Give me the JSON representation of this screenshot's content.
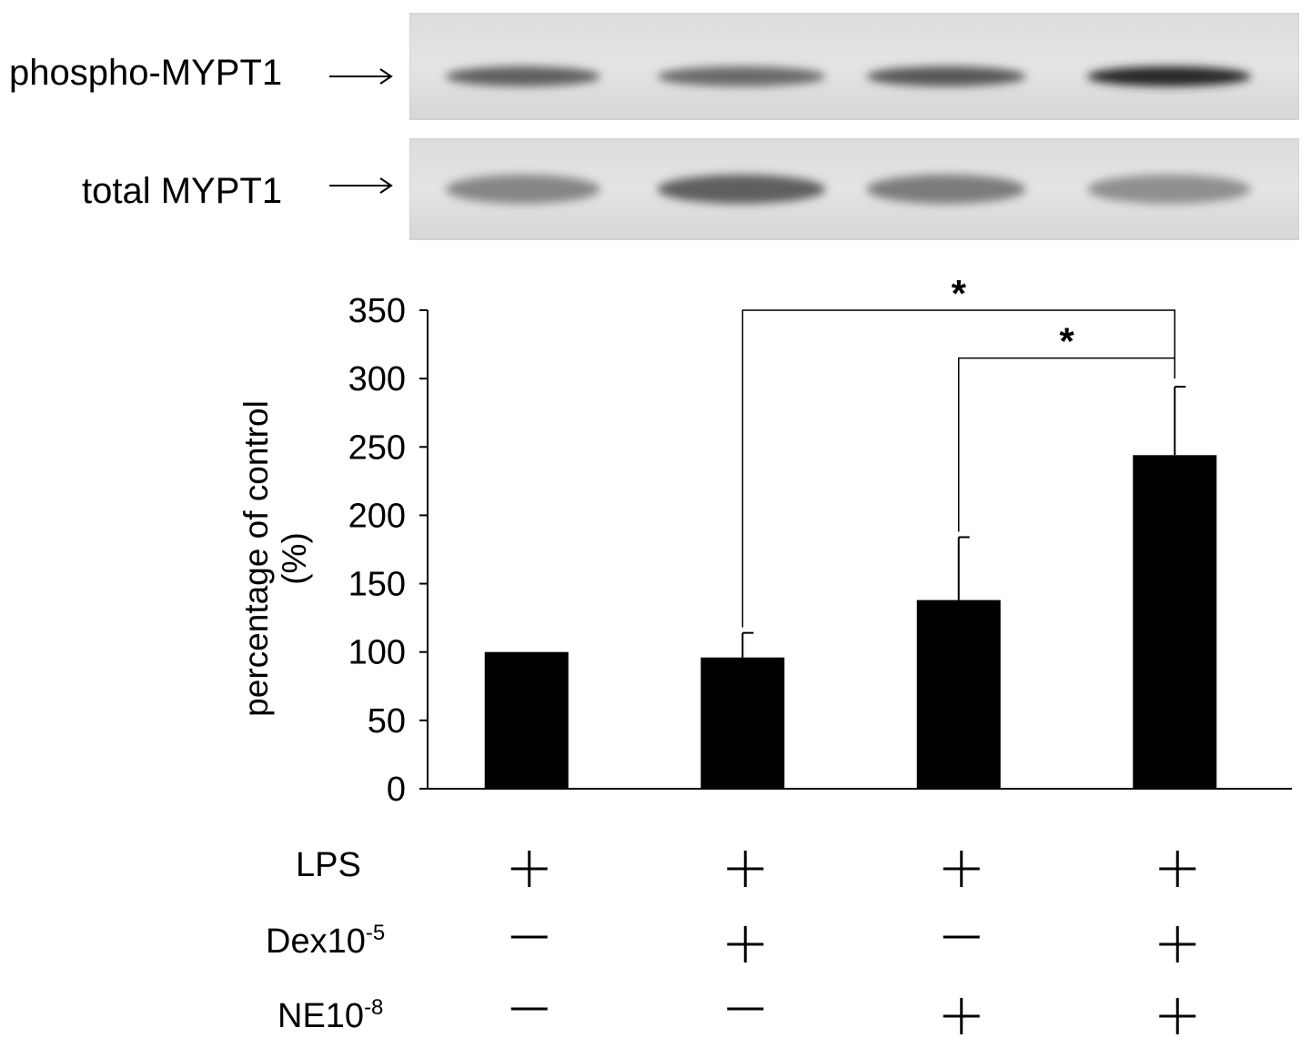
{
  "blots": [
    {
      "label": "phospho-MYPT1",
      "band_intensity": [
        0.55,
        0.5,
        0.6,
        0.85
      ]
    },
    {
      "label": "total MYPT1",
      "band_intensity": [
        0.35,
        0.55,
        0.4,
        0.3
      ]
    }
  ],
  "chart_data": {
    "type": "bar",
    "categories": [
      "1",
      "2",
      "3",
      "4"
    ],
    "values": [
      100,
      96,
      138,
      244
    ],
    "errors": [
      0,
      18,
      46,
      50
    ],
    "ylabel": "percentage of control (%)",
    "ylabel_lines": [
      "percentage of control",
      "(%)"
    ],
    "ylim": [
      0,
      350
    ],
    "yticks": [
      0,
      50,
      100,
      150,
      200,
      250,
      300,
      350
    ],
    "grid": false,
    "bar_color": "#000000",
    "significance": [
      {
        "from": 2,
        "to": 4,
        "label": "*"
      },
      {
        "from": 3,
        "to": 4,
        "label": "*"
      }
    ]
  },
  "conditions": [
    {
      "label": "LPS",
      "sup": "",
      "states": [
        "+",
        "+",
        "+",
        "+"
      ]
    },
    {
      "label": "Dex10",
      "sup": "-5",
      "states": [
        "—",
        "+",
        "—",
        "+"
      ]
    },
    {
      "label": "NE10",
      "sup": "-8",
      "states": [
        "—",
        "—",
        "+",
        "+"
      ]
    }
  ]
}
